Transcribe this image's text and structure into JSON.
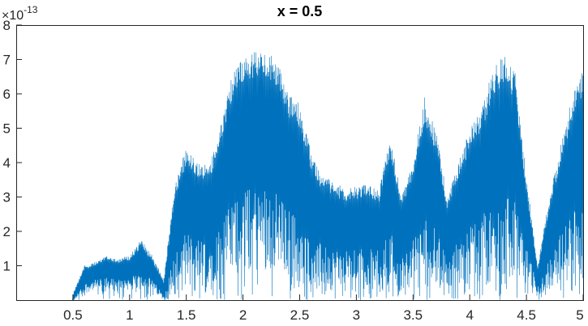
{
  "chart_data": {
    "type": "line",
    "title": "x = 0.5",
    "xlabel": "",
    "ylabel": "",
    "xlim": [
      0,
      5
    ],
    "ylim": [
      0,
      8e-13
    ],
    "y_exponent_base": "×10",
    "y_exponent_power": "-13",
    "xticks": [
      0.5,
      1,
      1.5,
      2,
      2.5,
      3,
      3.5,
      4,
      4.5,
      5
    ],
    "xtick_labels": [
      "0.5",
      "1",
      "1.5",
      "2",
      "2.5",
      "3",
      "3.5",
      "4",
      "4.5",
      "5"
    ],
    "yticks": [
      1,
      2,
      3,
      4,
      5,
      6,
      7,
      8
    ],
    "ytick_labels": [
      "1",
      "2",
      "3",
      "4",
      "5",
      "6",
      "7",
      "8"
    ],
    "grid": false,
    "series": [
      {
        "color": "#0072BD",
        "envelope": {
          "x": [
            0.5,
            0.6,
            0.7,
            0.8,
            0.9,
            1.0,
            1.1,
            1.2,
            1.3,
            1.35,
            1.4,
            1.5,
            1.6,
            1.7,
            1.8,
            1.9,
            2.0,
            2.1,
            2.2,
            2.3,
            2.4,
            2.5,
            2.6,
            2.7,
            2.8,
            2.9,
            3.0,
            3.1,
            3.2,
            3.3,
            3.4,
            3.5,
            3.6,
            3.7,
            3.8,
            3.9,
            4.0,
            4.1,
            4.2,
            4.3,
            4.4,
            4.5,
            4.6,
            4.7,
            4.8,
            4.9,
            5.0
          ],
          "upper": [
            0.2,
            1.0,
            1.1,
            1.3,
            1.2,
            1.3,
            1.75,
            1.3,
            0.6,
            2.0,
            3.4,
            4.45,
            4.0,
            3.9,
            5.0,
            6.5,
            7.1,
            7.25,
            7.2,
            7.0,
            6.0,
            5.7,
            4.3,
            3.6,
            3.5,
            3.2,
            3.3,
            3.4,
            3.2,
            4.8,
            3.0,
            4.0,
            5.9,
            5.0,
            3.0,
            4.0,
            5.0,
            5.5,
            6.7,
            7.2,
            6.6,
            3.6,
            1.0,
            3.0,
            4.5,
            5.9,
            6.8
          ],
          "center": [
            0.0,
            0.7,
            0.8,
            0.9,
            0.85,
            0.9,
            1.1,
            0.8,
            0.25,
            1.2,
            2.3,
            3.0,
            2.7,
            2.6,
            3.3,
            4.3,
            4.9,
            5.0,
            5.1,
            4.7,
            4.0,
            3.7,
            2.8,
            2.4,
            2.3,
            2.1,
            2.2,
            2.3,
            2.2,
            3.1,
            2.0,
            2.8,
            3.6,
            3.1,
            1.9,
            2.6,
            3.2,
            3.6,
            4.3,
            4.7,
            4.3,
            2.3,
            0.6,
            1.9,
            2.9,
            3.8,
            4.4
          ],
          "lower": [
            0.0,
            0.2,
            0.3,
            0.3,
            0.3,
            0.3,
            0.4,
            0.3,
            0.0,
            0.1,
            0.3,
            0.5,
            0.4,
            0.5,
            0.6,
            0.7,
            0.8,
            0.8,
            0.9,
            0.8,
            0.7,
            0.6,
            0.5,
            0.4,
            0.4,
            0.4,
            0.4,
            0.4,
            0.4,
            0.5,
            0.3,
            0.4,
            0.6,
            0.5,
            0.3,
            0.4,
            0.5,
            0.6,
            0.7,
            0.8,
            0.7,
            0.4,
            0.1,
            0.3,
            0.5,
            0.6,
            0.7
          ]
        }
      }
    ]
  }
}
